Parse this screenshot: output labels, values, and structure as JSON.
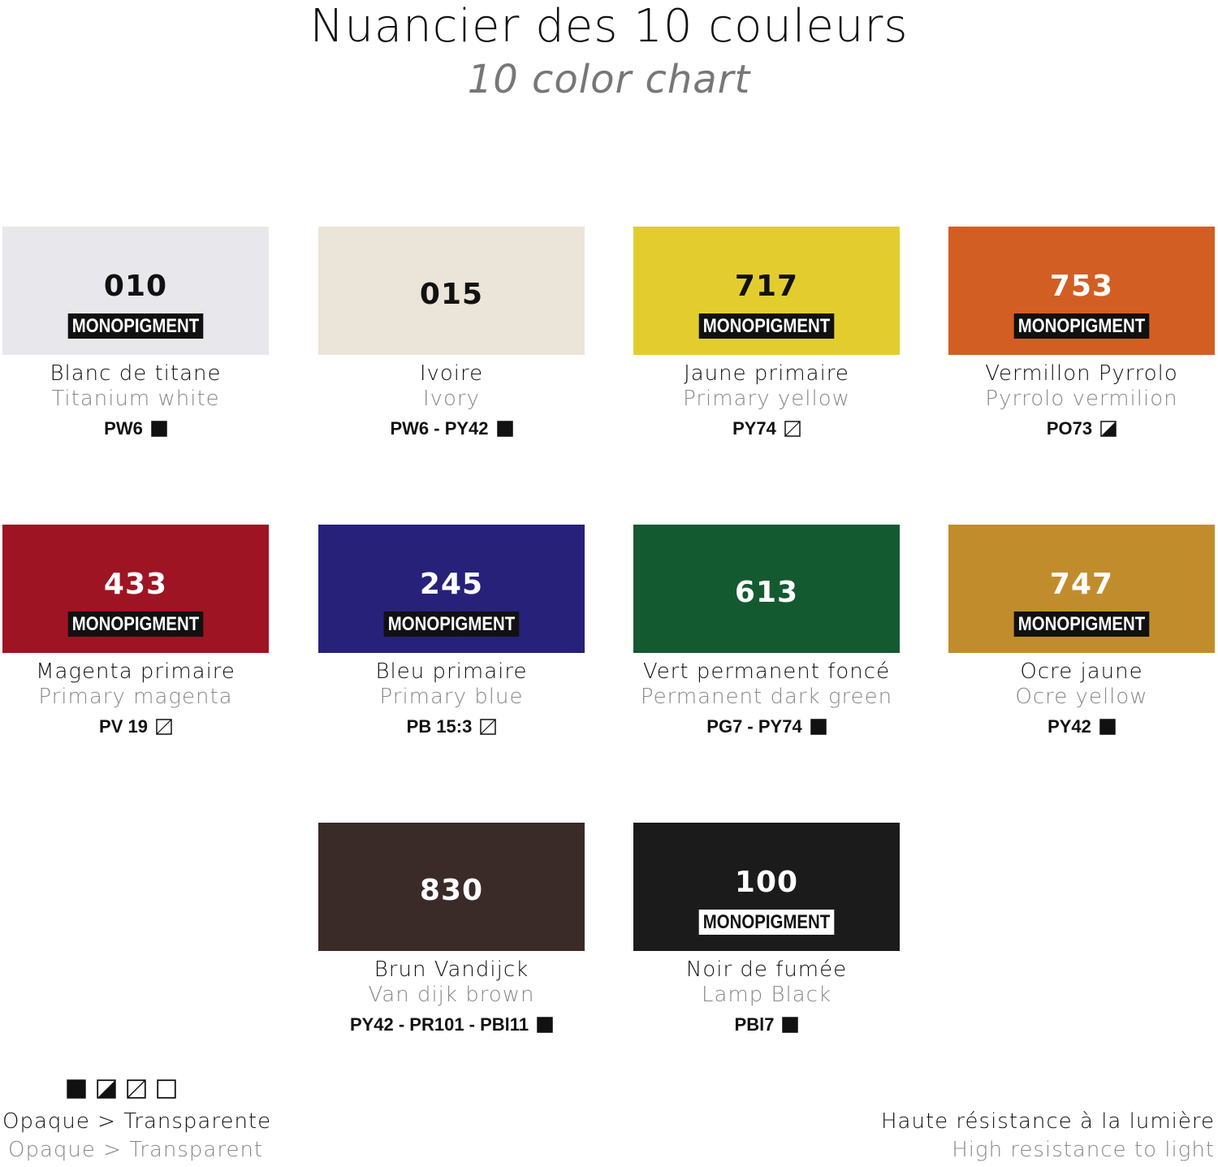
{
  "header": {
    "title": "Nuancier des 10 couleurs",
    "subtitle": "10 color chart"
  },
  "swatches": [
    {
      "code": "010",
      "badge": "MONOPIGMENT",
      "badge_color": "#111111",
      "color": "#e8e8ec",
      "text_color": "#111111",
      "name_fr": "Blanc de titane",
      "name_en": "Titanium white",
      "pigment": "PW6",
      "opacity": "opaque"
    },
    {
      "code": "015",
      "color": "#ebe4d9",
      "text_color": "#111111",
      "name_fr": "Ivoire",
      "name_en": "Ivory",
      "pigment": "PW6 - PY42",
      "opacity": "opaque"
    },
    {
      "code": "717",
      "badge": "MONOPIGMENT",
      "badge_color": "#111111",
      "color": "#e3cd2e",
      "text_color": "#111111",
      "name_fr": "Jaune primaire",
      "name_en": "Primary yellow",
      "pigment": "PY74",
      "opacity": "semi-transparent"
    },
    {
      "code": "753",
      "badge": "MONOPIGMENT",
      "badge_color": "#111111",
      "color": "#d25e23",
      "text_color": "#ffffff",
      "name_fr": "Vermillon Pyrrolo",
      "name_en": "Pyrrolo vermilion",
      "pigment": "PO73",
      "opacity": "semi-opaque"
    },
    {
      "code": "433",
      "badge": "MONOPIGMENT",
      "badge_color": "#111111",
      "color": "#9f1423",
      "text_color": "#ffffff",
      "name_fr": "Magenta primaire",
      "name_en": "Primary magenta",
      "pigment": "PV 19",
      "opacity": "semi-transparent"
    },
    {
      "code": "245",
      "badge": "MONOPIGMENT",
      "badge_color": "#111111",
      "color": "#27217a",
      "text_color": "#ffffff",
      "name_fr": "Bleu primaire",
      "name_en": "Primary blue",
      "pigment": "PB 15:3",
      "opacity": "semi-transparent"
    },
    {
      "code": "613",
      "color": "#145a30",
      "text_color": "#ffffff",
      "name_fr": "Vert permanent foncé",
      "name_en": "Permanent dark green",
      "pigment": "PG7 - PY74",
      "opacity": "opaque"
    },
    {
      "code": "747",
      "badge": "MONOPIGMENT",
      "badge_color": "#111111",
      "color": "#c18d2c",
      "text_color": "#ffffff",
      "name_fr": "Ocre jaune",
      "name_en": "Ocre yellow",
      "pigment": "PY42",
      "opacity": "opaque"
    },
    {
      "code": "830",
      "color": "#3a2a28",
      "text_color": "#ffffff",
      "name_fr": "Brun Vandijck",
      "name_en": "Van dijk brown",
      "pigment": "PY42 - PR101 - PBl11",
      "opacity": "opaque"
    },
    {
      "code": "100",
      "badge": "MONOPIGMENT",
      "badge_color": "#ffffff",
      "color": "#1c1b1c",
      "text_color": "#ffffff",
      "name_fr": "Noir de fumée",
      "name_en": "Lamp Black",
      "pigment": "PBl7",
      "opacity": "opaque"
    }
  ],
  "legend_opacity": {
    "icons": [
      "opaque",
      "semi-opaque",
      "semi-transparent",
      "transparent"
    ],
    "label_fr": "Opaque > Transparente",
    "label_en": "Opaque > Transparent"
  },
  "legend_light": {
    "label_fr": "Haute résistance à la lumière",
    "label_en": "High resistance to light"
  }
}
